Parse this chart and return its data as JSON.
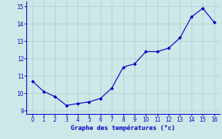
{
  "x": [
    0,
    1,
    2,
    3,
    4,
    5,
    6,
    7,
    8,
    9,
    10,
    11,
    12,
    13,
    14,
    15,
    16
  ],
  "y": [
    10.7,
    10.1,
    9.8,
    9.3,
    9.4,
    9.5,
    9.7,
    10.3,
    11.5,
    11.7,
    12.4,
    12.4,
    12.6,
    13.2,
    14.4,
    14.9,
    14.1
  ],
  "line_color": "#0000cc",
  "marker": "D",
  "marker_size": 2.2,
  "bg_color": "#cce8e8",
  "grid_color": "#aacccc",
  "xlabel": "Graphe des températures (°c)",
  "xlabel_color": "#0000cc",
  "tick_color": "#0000cc",
  "spine_color": "#0000cc",
  "xlim": [
    -0.5,
    16.5
  ],
  "ylim": [
    8.8,
    15.3
  ],
  "xticks": [
    0,
    1,
    2,
    3,
    4,
    5,
    6,
    7,
    8,
    9,
    10,
    11,
    12,
    13,
    14,
    15,
    16
  ],
  "yticks": [
    9,
    10,
    11,
    12,
    13,
    14,
    15
  ]
}
